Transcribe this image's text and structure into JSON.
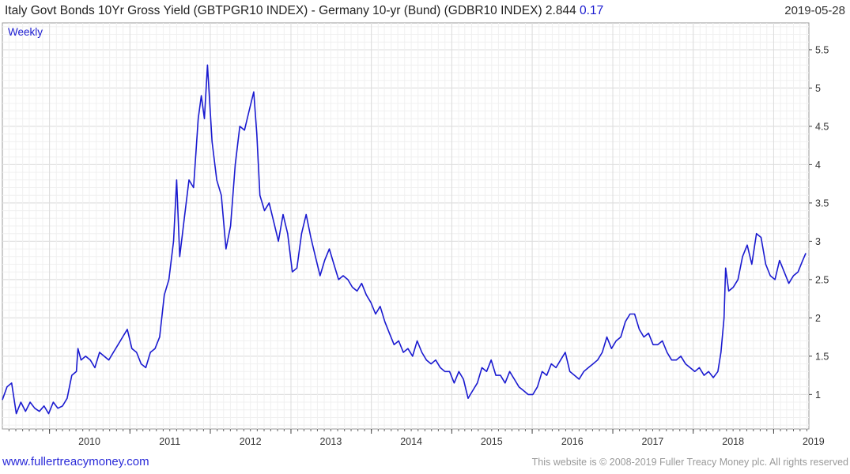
{
  "header": {
    "title_text": "Italy Govt Bonds 10Yr Gross Yield (GBTPGR10 INDEX) - Germany 10-yr (Bund)  (GDBR10 INDEX) 2.844",
    "last_change": "0.17",
    "date": "2019-05-28"
  },
  "footer": {
    "site_link": "www.fullertreacymoney.com",
    "copyright": "This website is © 2008-2019 Fuller Treacy Money plc. All rights reserved"
  },
  "colors": {
    "line": "#1a1ad0",
    "grid": "#dcdcdc",
    "axis": "#444444",
    "accent": "#1a1ad0"
  },
  "chart_data": {
    "type": "line",
    "period_label": "Weekly",
    "x_ticks": [
      "2010",
      "2011",
      "2012",
      "2013",
      "2014",
      "2015",
      "2016",
      "2017",
      "2018",
      "2019"
    ],
    "y_ticks": [
      "1",
      "1.5",
      "2",
      "2.5",
      "3",
      "3.5",
      "4",
      "4.5",
      "5",
      "5.5"
    ],
    "xlim": [
      "2009-06-01",
      "2019-06-10"
    ],
    "ylim": [
      0.55,
      5.85
    ],
    "grid": true,
    "series": [
      {
        "x": [
          "2009-06-01",
          "2009-06-22",
          "2009-07-13",
          "2009-08-03",
          "2009-08-24",
          "2009-09-14",
          "2009-10-05",
          "2009-10-26",
          "2009-11-16",
          "2009-12-07",
          "2009-12-28",
          "2010-01-18",
          "2010-02-08",
          "2010-03-01",
          "2010-03-22",
          "2010-04-12",
          "2010-05-03",
          "2010-05-10",
          "2010-05-24",
          "2010-06-14",
          "2010-07-05",
          "2010-07-26",
          "2010-08-16",
          "2010-09-06",
          "2010-09-27",
          "2010-10-18",
          "2010-11-08",
          "2010-11-29",
          "2010-12-20",
          "2011-01-10",
          "2011-01-31",
          "2011-02-21",
          "2011-03-14",
          "2011-04-04",
          "2011-04-25",
          "2011-05-16",
          "2011-06-06",
          "2011-06-27",
          "2011-07-18",
          "2011-08-01",
          "2011-08-15",
          "2011-09-05",
          "2011-09-26",
          "2011-10-17",
          "2011-11-07",
          "2011-11-21",
          "2011-12-05",
          "2011-12-19",
          "2012-01-09",
          "2012-01-30",
          "2012-02-20",
          "2012-03-12",
          "2012-04-02",
          "2012-04-23",
          "2012-05-14",
          "2012-06-04",
          "2012-06-25",
          "2012-07-16",
          "2012-07-30",
          "2012-08-13",
          "2012-09-03",
          "2012-09-24",
          "2012-10-15",
          "2012-11-05",
          "2012-11-26",
          "2012-12-17",
          "2013-01-07",
          "2013-01-28",
          "2013-02-18",
          "2013-03-11",
          "2013-04-01",
          "2013-04-22",
          "2013-05-13",
          "2013-06-03",
          "2013-06-24",
          "2013-07-15",
          "2013-08-05",
          "2013-08-26",
          "2013-09-16",
          "2013-10-07",
          "2013-10-28",
          "2013-11-18",
          "2013-12-09",
          "2013-12-30",
          "2014-01-20",
          "2014-02-10",
          "2014-03-03",
          "2014-03-24",
          "2014-04-14",
          "2014-05-05",
          "2014-05-26",
          "2014-06-16",
          "2014-07-07",
          "2014-07-28",
          "2014-08-18",
          "2014-09-08",
          "2014-09-29",
          "2014-10-20",
          "2014-11-10",
          "2014-12-01",
          "2014-12-22",
          "2015-01-12",
          "2015-02-02",
          "2015-02-23",
          "2015-03-16",
          "2015-04-06",
          "2015-04-27",
          "2015-05-18",
          "2015-06-08",
          "2015-06-29",
          "2015-07-20",
          "2015-08-10",
          "2015-08-31",
          "2015-09-21",
          "2015-10-12",
          "2015-11-02",
          "2015-11-23",
          "2015-12-14",
          "2016-01-04",
          "2016-01-25",
          "2016-02-15",
          "2016-03-07",
          "2016-03-28",
          "2016-04-18",
          "2016-05-09",
          "2016-05-30",
          "2016-06-20",
          "2016-07-11",
          "2016-08-01",
          "2016-08-22",
          "2016-09-12",
          "2016-10-03",
          "2016-10-24",
          "2016-11-14",
          "2016-12-05",
          "2016-12-26",
          "2017-01-16",
          "2017-02-06",
          "2017-02-27",
          "2017-03-20",
          "2017-04-10",
          "2017-05-01",
          "2017-05-22",
          "2017-06-12",
          "2017-07-03",
          "2017-07-24",
          "2017-08-14",
          "2017-09-04",
          "2017-09-25",
          "2017-10-16",
          "2017-11-06",
          "2017-11-27",
          "2017-12-18",
          "2018-01-08",
          "2018-01-29",
          "2018-02-19",
          "2018-03-12",
          "2018-04-02",
          "2018-04-23",
          "2018-05-07",
          "2018-05-21",
          "2018-05-28",
          "2018-06-11",
          "2018-07-02",
          "2018-07-23",
          "2018-08-13",
          "2018-09-03",
          "2018-09-24",
          "2018-10-15",
          "2018-11-05",
          "2018-11-26",
          "2018-12-17",
          "2019-01-07",
          "2019-01-28",
          "2019-02-18",
          "2019-03-11",
          "2019-04-01",
          "2019-04-22",
          "2019-05-13",
          "2019-05-27"
        ],
        "y": [
          0.93,
          1.1,
          1.15,
          0.75,
          0.9,
          0.78,
          0.9,
          0.82,
          0.78,
          0.85,
          0.75,
          0.9,
          0.82,
          0.85,
          0.95,
          1.25,
          1.3,
          1.6,
          1.45,
          1.5,
          1.45,
          1.35,
          1.55,
          1.5,
          1.45,
          1.55,
          1.65,
          1.75,
          1.85,
          1.6,
          1.55,
          1.4,
          1.35,
          1.55,
          1.6,
          1.75,
          2.3,
          2.5,
          3.0,
          3.8,
          2.8,
          3.3,
          3.8,
          3.7,
          4.6,
          4.9,
          4.6,
          5.3,
          4.3,
          3.8,
          3.6,
          2.9,
          3.2,
          4.0,
          4.5,
          4.45,
          4.7,
          4.95,
          4.4,
          3.6,
          3.4,
          3.5,
          3.25,
          3.0,
          3.35,
          3.1,
          2.6,
          2.65,
          3.1,
          3.35,
          3.05,
          2.8,
          2.55,
          2.75,
          2.9,
          2.7,
          2.5,
          2.55,
          2.5,
          2.4,
          2.35,
          2.45,
          2.3,
          2.2,
          2.05,
          2.15,
          1.95,
          1.8,
          1.65,
          1.7,
          1.55,
          1.6,
          1.5,
          1.7,
          1.55,
          1.45,
          1.4,
          1.45,
          1.35,
          1.3,
          1.3,
          1.15,
          1.3,
          1.2,
          0.95,
          1.05,
          1.15,
          1.35,
          1.3,
          1.45,
          1.25,
          1.25,
          1.15,
          1.3,
          1.2,
          1.1,
          1.05,
          1.0,
          1.0,
          1.1,
          1.3,
          1.25,
          1.4,
          1.35,
          1.45,
          1.55,
          1.3,
          1.25,
          1.2,
          1.3,
          1.35,
          1.4,
          1.45,
          1.55,
          1.75,
          1.6,
          1.7,
          1.75,
          1.95,
          2.05,
          2.05,
          1.85,
          1.75,
          1.8,
          1.65,
          1.65,
          1.7,
          1.55,
          1.45,
          1.45,
          1.5,
          1.4,
          1.35,
          1.3,
          1.35,
          1.25,
          1.3,
          1.22,
          1.3,
          1.55,
          2.0,
          2.65,
          2.35,
          2.4,
          2.5,
          2.8,
          2.95,
          2.7,
          3.1,
          3.05,
          2.7,
          2.55,
          2.5,
          2.75,
          2.6,
          2.45,
          2.55,
          2.6,
          2.75,
          2.844
        ]
      }
    ]
  }
}
